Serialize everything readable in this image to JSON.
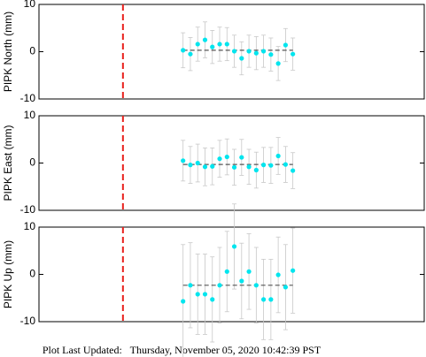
{
  "chart_data": [
    {
      "type": "scatter",
      "ylabel": "PIPK North (mm)",
      "x": [
        37.4,
        39.3,
        41.2,
        43.1,
        45.0,
        46.9,
        48.8,
        50.7,
        52.6,
        54.5,
        56.4,
        58.3,
        60.2,
        62.1,
        64.0,
        65.9
      ],
      "series": [
        {
          "color": "#00e5ee",
          "values": [
            0.3,
            -0.5,
            1.6,
            2.5,
            1.0,
            1.6,
            1.6,
            0.1,
            -1.4,
            0.1,
            -0.3,
            0.1,
            -0.6,
            -2.5,
            1.4,
            -0.5
          ],
          "errors": [
            3.7,
            3.5,
            3.6,
            3.8,
            3.5,
            3.6,
            3.5,
            3.4,
            3.5,
            3.4,
            3.5,
            3.4,
            3.5,
            3.6,
            3.5,
            3.4
          ]
        }
      ],
      "trend": [
        0.3,
        0.3
      ],
      "vline": 21.8,
      "xlim": [
        0,
        100
      ],
      "ylim": [
        -10,
        10
      ],
      "yticks": [
        -10,
        0,
        10
      ]
    },
    {
      "type": "scatter",
      "ylabel": "PIPK East (mm)",
      "x": [
        37.4,
        39.3,
        41.2,
        43.1,
        45.0,
        46.9,
        48.8,
        50.7,
        52.6,
        54.5,
        56.4,
        58.3,
        60.2,
        62.1,
        64.0,
        65.9
      ],
      "series": [
        {
          "color": "#00e5ee",
          "values": [
            0.5,
            -0.4,
            0.0,
            -0.8,
            -0.7,
            0.9,
            1.3,
            -0.9,
            1.2,
            -0.8,
            -1.5,
            -0.4,
            -0.5,
            1.5,
            -0.3,
            -1.6
          ],
          "errors": [
            4.3,
            3.9,
            4.0,
            4.0,
            3.9,
            3.9,
            3.8,
            3.8,
            3.8,
            3.7,
            3.8,
            3.7,
            3.8,
            3.9,
            3.8,
            3.8
          ]
        }
      ],
      "trend": [
        -0.3,
        -0.3
      ],
      "vline": 21.8,
      "xlim": [
        0,
        100
      ],
      "ylim": [
        -10,
        10
      ],
      "yticks": [
        -10,
        0,
        10
      ]
    },
    {
      "type": "scatter",
      "ylabel": "PIPK Up (mm)",
      "x": [
        37.4,
        39.3,
        41.2,
        43.1,
        45.0,
        46.9,
        48.8,
        50.7,
        52.6,
        54.5,
        56.4,
        58.3,
        60.2,
        62.1,
        64.0,
        65.9
      ],
      "series": [
        {
          "color": "#00e5ee",
          "values": [
            -5.7,
            -2.3,
            -4.2,
            -4.2,
            -5.3,
            -2.3,
            0.6,
            5.9,
            -1.4,
            0.6,
            -2.3,
            -5.3,
            -5.3,
            -0.1,
            -2.7,
            0.8
          ],
          "errors": [
            12.0,
            9.0,
            8.5,
            8.5,
            9.0,
            8.0,
            8.5,
            9.0,
            8.0,
            8.0,
            8.0,
            8.5,
            8.5,
            8.0,
            9.0,
            9.0
          ]
        }
      ],
      "trend": [
        -2.3,
        -2.3
      ],
      "vline": 21.8,
      "xlim": [
        0,
        100
      ],
      "ylim": [
        -10,
        10
      ],
      "yticks": [
        -10,
        0,
        10
      ]
    }
  ],
  "footer": "Plot Last Updated:   Thursday, November 05, 2020 10:42:39 PST"
}
